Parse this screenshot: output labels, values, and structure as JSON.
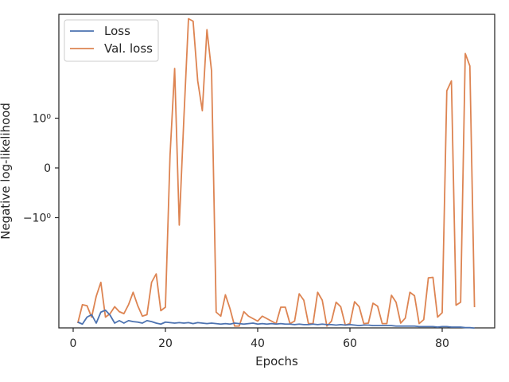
{
  "chart_data": {
    "type": "line",
    "xlabel": "Epochs",
    "ylabel": "Negative log-likelihood",
    "xlim": [
      -3,
      92
    ],
    "yscale": "symlog",
    "x_ticks": [
      0,
      20,
      40,
      60,
      80
    ],
    "y_ticks": [
      {
        "value": 1,
        "label": "10⁰"
      },
      {
        "value": 0,
        "label": "0"
      },
      {
        "value": -1,
        "label": "−10⁰"
      }
    ],
    "grid": false,
    "legend": {
      "position": "top-left",
      "entries": [
        "Loss",
        "Val. loss"
      ]
    },
    "series": [
      {
        "name": "Loss",
        "color": "#4c72b0",
        "x": [
          1,
          2,
          3,
          4,
          5,
          6,
          7,
          8,
          9,
          10,
          11,
          12,
          13,
          14,
          15,
          16,
          17,
          18,
          19,
          20,
          21,
          22,
          23,
          24,
          25,
          26,
          27,
          28,
          29,
          30,
          31,
          32,
          33,
          34,
          35,
          36,
          37,
          38,
          39,
          40,
          41,
          42,
          43,
          44,
          45,
          46,
          47,
          48,
          49,
          50,
          51,
          52,
          53,
          54,
          55,
          56,
          57,
          58,
          59,
          60,
          61,
          62,
          63,
          64,
          65,
          66,
          67,
          68,
          69,
          70,
          71,
          72,
          73,
          74,
          75,
          76,
          77,
          78,
          79,
          80,
          81,
          82,
          83,
          84,
          85,
          86,
          87
        ],
        "y": [
          -3.1,
          -3.14,
          -3.0,
          -2.95,
          -3.12,
          -2.9,
          -2.86,
          -2.96,
          -3.12,
          -3.07,
          -3.12,
          -3.07,
          -3.09,
          -3.1,
          -3.12,
          -3.07,
          -3.09,
          -3.12,
          -3.14,
          -3.1,
          -3.11,
          -3.12,
          -3.11,
          -3.12,
          -3.11,
          -3.13,
          -3.11,
          -3.12,
          -3.13,
          -3.12,
          -3.13,
          -3.14,
          -3.13,
          -3.14,
          -3.12,
          -3.13,
          -3.14,
          -3.13,
          -3.12,
          -3.14,
          -3.13,
          -3.14,
          -3.13,
          -3.14,
          -3.13,
          -3.14,
          -3.14,
          -3.15,
          -3.14,
          -3.15,
          -3.15,
          -3.14,
          -3.15,
          -3.14,
          -3.15,
          -3.15,
          -3.16,
          -3.15,
          -3.16,
          -3.15,
          -3.16,
          -3.17,
          -3.16,
          -3.16,
          -3.17,
          -3.17,
          -3.17,
          -3.17,
          -3.17,
          -3.18,
          -3.18,
          -3.18,
          -3.18,
          -3.18,
          -3.19,
          -3.19,
          -3.19,
          -3.19,
          -3.2,
          -3.19,
          -3.19,
          -3.2,
          -3.2,
          -3.2,
          -3.21,
          -3.21,
          -3.22
        ]
      },
      {
        "name": "Val. loss",
        "color": "#dd8452",
        "x": [
          1,
          2,
          3,
          4,
          5,
          6,
          7,
          8,
          9,
          10,
          11,
          12,
          13,
          14,
          15,
          16,
          17,
          18,
          19,
          20,
          21,
          22,
          23,
          24,
          25,
          26,
          27,
          28,
          29,
          30,
          31,
          32,
          33,
          34,
          35,
          36,
          37,
          38,
          39,
          40,
          41,
          42,
          43,
          44,
          45,
          46,
          47,
          48,
          49,
          50,
          51,
          52,
          53,
          54,
          55,
          56,
          57,
          58,
          59,
          60,
          61,
          62,
          63,
          64,
          65,
          66,
          67,
          68,
          69,
          70,
          71,
          72,
          73,
          74,
          75,
          76,
          77,
          78,
          79,
          80,
          81,
          82,
          83,
          84,
          85,
          86,
          87
        ],
        "y": [
          -3.12,
          -2.75,
          -2.77,
          -3.0,
          -2.58,
          -2.3,
          -3.0,
          -2.93,
          -2.79,
          -2.89,
          -2.93,
          -2.75,
          -2.5,
          -2.77,
          -2.98,
          -2.95,
          -2.3,
          -2.13,
          -2.87,
          -2.8,
          0.25,
          2.0,
          -1.15,
          1.0,
          3.0,
          2.95,
          1.75,
          1.15,
          2.78,
          1.95,
          -2.9,
          -2.98,
          -2.55,
          -2.83,
          -3.18,
          -3.18,
          -2.89,
          -2.98,
          -3.03,
          -3.08,
          -2.98,
          -3.03,
          -3.08,
          -3.13,
          -2.8,
          -2.8,
          -3.13,
          -3.08,
          -2.53,
          -2.66,
          -3.13,
          -3.13,
          -2.5,
          -2.66,
          -3.18,
          -3.08,
          -2.7,
          -2.79,
          -3.16,
          -3.13,
          -2.69,
          -2.79,
          -3.13,
          -3.12,
          -2.72,
          -2.78,
          -3.13,
          -3.13,
          -2.56,
          -2.7,
          -3.12,
          -3.02,
          -2.5,
          -2.57,
          -3.13,
          -3.05,
          -2.21,
          -2.2,
          -3.0,
          -2.91,
          1.55,
          1.75,
          -2.76,
          -2.7,
          2.3,
          2.05,
          -2.8
        ]
      }
    ]
  }
}
